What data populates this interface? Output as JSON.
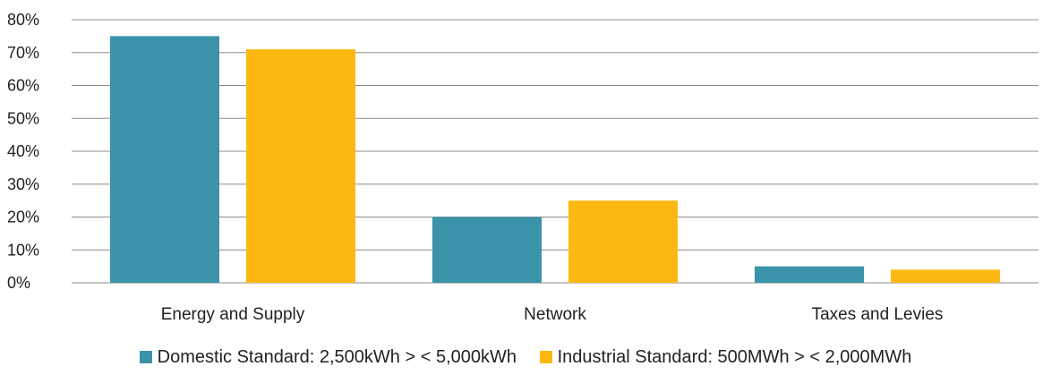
{
  "chart_data": {
    "type": "bar",
    "categories": [
      "Energy and Supply",
      "Network",
      "Taxes and Levies"
    ],
    "series": [
      {
        "name": "Domestic Standard: 2,500kWh > < 5,000kWh",
        "values": [
          75,
          20,
          5
        ],
        "color": "#3a93a8"
      },
      {
        "name": "Industrial Standard: 500MWh > < 2,000MWh",
        "values": [
          71,
          25,
          4
        ],
        "color": "#fdb813"
      }
    ],
    "ylim": [
      0,
      80
    ],
    "yticks": [
      "0%",
      "10%",
      "20%",
      "30%",
      "40%",
      "50%",
      "60%",
      "70%",
      "80%"
    ],
    "grid": true,
    "legend_position": "bottom"
  }
}
